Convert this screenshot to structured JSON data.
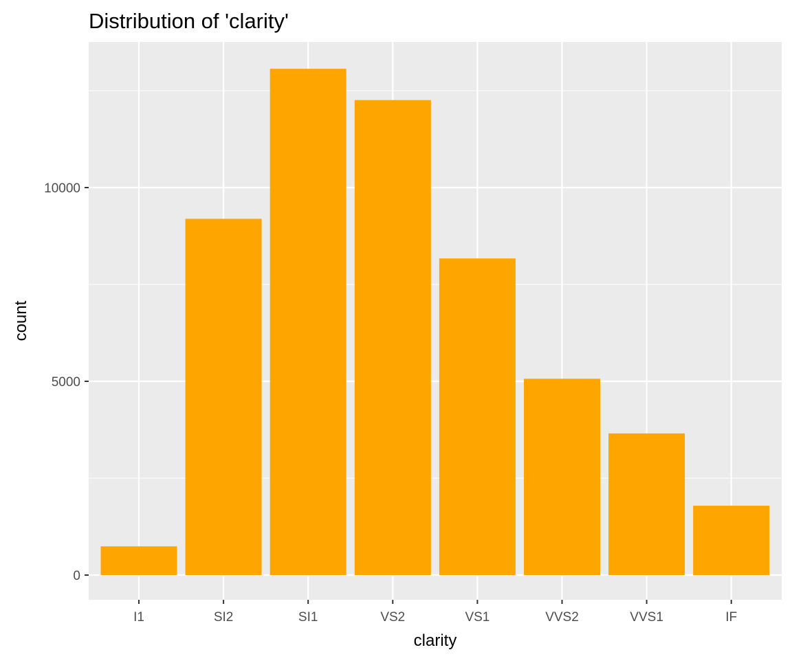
{
  "chart_data": {
    "type": "bar",
    "title": "Distribution of 'clarity'",
    "xlabel": "clarity",
    "ylabel": "count",
    "categories": [
      "I1",
      "SI2",
      "SI1",
      "VS2",
      "VS1",
      "VVS2",
      "VVS1",
      "IF"
    ],
    "values": [
      741,
      9194,
      13065,
      12258,
      8171,
      5066,
      3655,
      1790
    ],
    "ylim": [
      0,
      13065
    ],
    "y_ticks": [
      0,
      5000,
      10000
    ],
    "bar_color": "#FFA500",
    "panel_background": "#EBEBEB",
    "grid": true,
    "legend": "none"
  }
}
